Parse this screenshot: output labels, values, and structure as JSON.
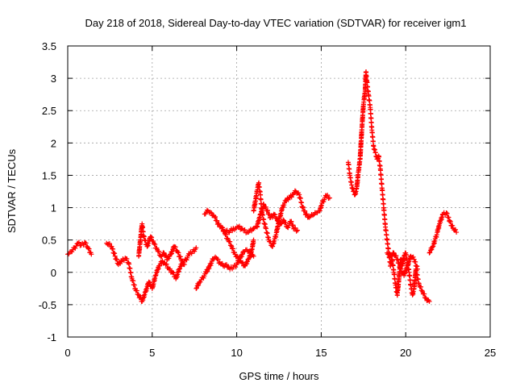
{
  "chart_data": {
    "type": "scatter",
    "title": "Day 218 of 2018, Sidereal Day-to-day VTEC variation (SDTVAR) for receiver igm1",
    "xlabel": "GPS time / hours",
    "ylabel": "SDTVAR / TECUs",
    "xlim": [
      0,
      25
    ],
    "ylim": [
      -1,
      3.5
    ],
    "xticks": [
      0,
      5,
      10,
      15,
      20,
      25
    ],
    "yticks": [
      -1,
      -0.5,
      0,
      0.5,
      1,
      1.5,
      2,
      2.5,
      3,
      3.5
    ],
    "ytick_labels": [
      "-1",
      "-0.5",
      "0",
      "0.5",
      "1",
      "1.5",
      "2",
      "2.5",
      "3",
      "3.5"
    ],
    "grid": true,
    "marker": "+",
    "color": "#ff0000",
    "series": [
      {
        "name": "SDTVAR",
        "segments": [
          [
            [
              0.0,
              0.28
            ],
            [
              0.2,
              0.32
            ],
            [
              0.4,
              0.38
            ],
            [
              0.6,
              0.45
            ],
            [
              0.8,
              0.42
            ],
            [
              1.0,
              0.46
            ],
            [
              1.2,
              0.38
            ],
            [
              1.4,
              0.28
            ]
          ],
          [
            [
              2.3,
              0.45
            ],
            [
              2.6,
              0.4
            ],
            [
              2.8,
              0.25
            ],
            [
              3.0,
              0.12
            ],
            [
              3.2,
              0.18
            ],
            [
              3.4,
              0.22
            ],
            [
              3.6,
              0.15
            ],
            [
              3.8,
              -0.1
            ],
            [
              4.0,
              -0.25
            ],
            [
              4.2,
              -0.35
            ],
            [
              4.4,
              -0.45
            ],
            [
              4.6,
              -0.3
            ],
            [
              4.8,
              -0.15
            ],
            [
              5.0,
              -0.25
            ],
            [
              5.2,
              -0.05
            ],
            [
              5.4,
              0.1
            ],
            [
              5.6,
              0.18
            ],
            [
              5.8,
              0.12
            ],
            [
              6.0,
              0.05
            ],
            [
              6.2,
              0.0
            ],
            [
              6.4,
              -0.1
            ],
            [
              6.6,
              0.05
            ],
            [
              6.8,
              0.15
            ],
            [
              7.0,
              0.2
            ],
            [
              7.2,
              0.28
            ],
            [
              7.4,
              0.32
            ],
            [
              7.6,
              0.38
            ]
          ],
          [
            [
              4.2,
              0.25
            ],
            [
              4.3,
              0.5
            ],
            [
              4.4,
              0.75
            ],
            [
              4.5,
              0.55
            ],
            [
              4.7,
              0.4
            ],
            [
              4.9,
              0.55
            ],
            [
              5.1,
              0.45
            ],
            [
              5.3,
              0.35
            ],
            [
              5.5,
              0.25
            ],
            [
              5.7,
              0.3
            ],
            [
              5.9,
              0.2
            ],
            [
              6.1,
              0.28
            ],
            [
              6.3,
              0.4
            ],
            [
              6.5,
              0.32
            ],
            [
              6.7,
              0.2
            ],
            [
              6.9,
              0.12
            ]
          ],
          [
            [
              7.6,
              -0.25
            ],
            [
              7.8,
              -0.15
            ],
            [
              8.0,
              -0.08
            ],
            [
              8.2,
              0.0
            ],
            [
              8.4,
              0.1
            ],
            [
              8.6,
              0.2
            ],
            [
              8.8,
              0.22
            ],
            [
              9.0,
              0.15
            ],
            [
              9.2,
              0.1
            ],
            [
              9.4,
              0.12
            ],
            [
              9.6,
              0.05
            ],
            [
              9.8,
              0.08
            ],
            [
              10.0,
              0.12
            ],
            [
              10.2,
              0.22
            ],
            [
              10.4,
              0.32
            ],
            [
              10.6,
              0.35
            ],
            [
              10.8,
              0.3
            ],
            [
              11.0,
              0.25
            ]
          ],
          [
            [
              8.1,
              0.9
            ],
            [
              8.3,
              0.95
            ],
            [
              8.5,
              0.92
            ],
            [
              8.7,
              0.85
            ],
            [
              8.9,
              0.75
            ],
            [
              9.1,
              0.7
            ],
            [
              9.3,
              0.6
            ],
            [
              9.5,
              0.5
            ],
            [
              9.7,
              0.4
            ],
            [
              9.9,
              0.28
            ],
            [
              10.1,
              0.22
            ],
            [
              10.3,
              0.15
            ],
            [
              10.5,
              0.1
            ],
            [
              10.7,
              0.2
            ],
            [
              10.9,
              0.35
            ],
            [
              11.0,
              0.5
            ]
          ],
          [
            [
              9.2,
              0.65
            ],
            [
              9.5,
              0.62
            ],
            [
              9.8,
              0.68
            ],
            [
              10.1,
              0.7
            ],
            [
              10.4,
              0.65
            ],
            [
              10.7,
              0.62
            ],
            [
              11.0,
              0.68
            ],
            [
              11.2,
              0.7
            ],
            [
              11.4,
              0.9
            ],
            [
              11.6,
              1.05
            ],
            [
              11.8,
              0.95
            ],
            [
              12.0,
              0.85
            ],
            [
              12.2,
              0.9
            ],
            [
              12.4,
              0.8
            ],
            [
              12.6,
              0.75
            ],
            [
              12.8,
              0.8
            ],
            [
              13.0,
              0.7
            ],
            [
              13.2,
              0.78
            ],
            [
              13.4,
              0.68
            ],
            [
              13.6,
              0.65
            ]
          ],
          [
            [
              11.0,
              0.95
            ],
            [
              11.1,
              1.1
            ],
            [
              11.2,
              1.25
            ],
            [
              11.3,
              1.38
            ],
            [
              11.4,
              1.2
            ],
            [
              11.5,
              0.9
            ],
            [
              11.7,
              0.7
            ],
            [
              11.9,
              0.5
            ],
            [
              12.1,
              0.4
            ],
            [
              12.3,
              0.55
            ],
            [
              12.5,
              0.8
            ],
            [
              12.7,
              1.0
            ],
            [
              12.9,
              1.1
            ],
            [
              13.1,
              1.15
            ],
            [
              13.3,
              1.2
            ],
            [
              13.5,
              1.25
            ],
            [
              13.7,
              1.2
            ],
            [
              13.9,
              1.0
            ],
            [
              14.1,
              0.9
            ],
            [
              14.3,
              0.85
            ],
            [
              14.5,
              0.88
            ],
            [
              14.7,
              0.92
            ],
            [
              14.9,
              0.95
            ],
            [
              15.1,
              1.1
            ],
            [
              15.3,
              1.18
            ],
            [
              15.5,
              1.15
            ]
          ],
          [
            [
              16.6,
              1.7
            ],
            [
              16.7,
              1.5
            ],
            [
              16.8,
              1.35
            ],
            [
              16.9,
              1.25
            ],
            [
              17.0,
              1.2
            ],
            [
              17.1,
              1.3
            ],
            [
              17.2,
              1.55
            ],
            [
              17.3,
              1.75
            ],
            [
              17.4,
              2.2
            ],
            [
              17.5,
              2.6
            ],
            [
              17.6,
              2.8
            ],
            [
              17.65,
              3.1
            ],
            [
              17.7,
              2.95
            ],
            [
              17.8,
              2.75
            ],
            [
              17.9,
              2.55
            ],
            [
              18.0,
              2.2
            ],
            [
              18.1,
              1.95
            ],
            [
              18.2,
              1.85
            ],
            [
              18.3,
              1.75
            ],
            [
              18.4,
              1.8
            ],
            [
              18.5,
              1.6
            ],
            [
              18.6,
              1.3
            ],
            [
              18.7,
              1.0
            ],
            [
              18.8,
              0.7
            ],
            [
              18.9,
              0.5
            ],
            [
              19.0,
              0.3
            ],
            [
              19.1,
              0.1
            ],
            [
              19.2,
              0.2
            ],
            [
              19.3,
              0.0
            ],
            [
              19.4,
              -0.2
            ],
            [
              19.5,
              -0.35
            ],
            [
              19.6,
              -0.1
            ],
            [
              19.7,
              0.2
            ],
            [
              19.8,
              0.1
            ],
            [
              19.9,
              0.25
            ],
            [
              20.0,
              0.3
            ],
            [
              20.1,
              0.15
            ],
            [
              20.2,
              0.0
            ],
            [
              20.3,
              -0.2
            ],
            [
              20.4,
              -0.35
            ],
            [
              20.5,
              -0.25
            ],
            [
              20.6,
              0.05
            ],
            [
              20.8,
              -0.2
            ],
            [
              21.0,
              -0.3
            ],
            [
              21.2,
              -0.4
            ],
            [
              21.4,
              -0.45
            ]
          ],
          [
            [
              18.9,
              0.3
            ],
            [
              19.1,
              0.25
            ],
            [
              19.3,
              0.3
            ],
            [
              19.5,
              0.2
            ],
            [
              19.7,
              0.05
            ],
            [
              19.9,
              -0.05
            ],
            [
              20.1,
              0.1
            ],
            [
              20.3,
              0.25
            ],
            [
              20.5,
              0.2
            ],
            [
              20.7,
              0.05
            ]
          ],
          [
            [
              21.4,
              0.3
            ],
            [
              21.6,
              0.4
            ],
            [
              21.8,
              0.55
            ],
            [
              22.0,
              0.75
            ],
            [
              22.2,
              0.9
            ],
            [
              22.4,
              0.92
            ],
            [
              22.6,
              0.8
            ],
            [
              22.8,
              0.68
            ],
            [
              23.0,
              0.62
            ]
          ]
        ]
      }
    ]
  }
}
